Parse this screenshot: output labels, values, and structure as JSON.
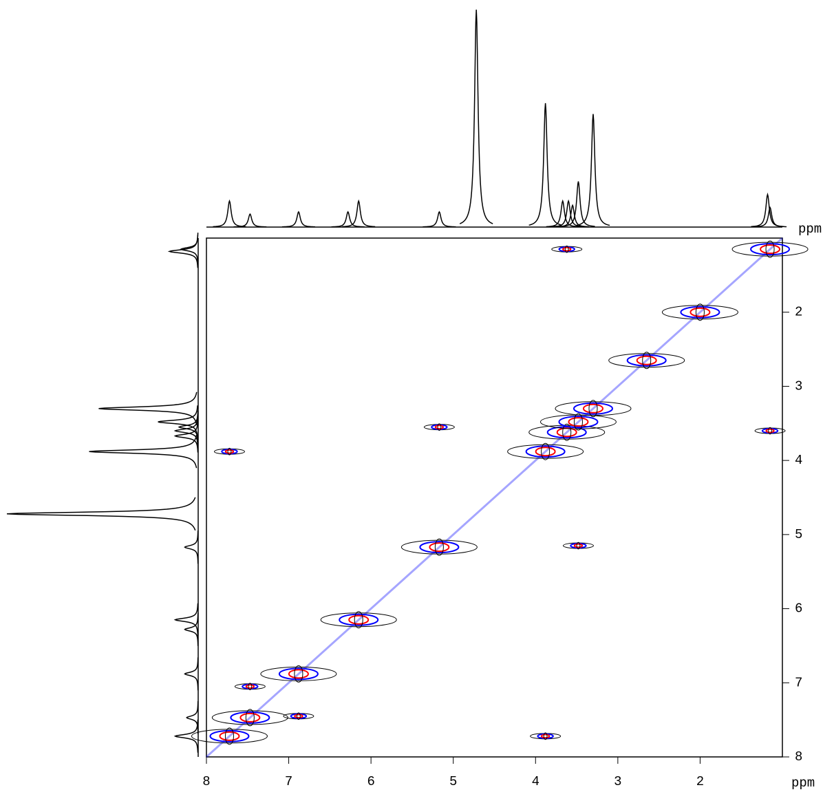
{
  "chart_data": {
    "type": "contour",
    "x_label": "ppm",
    "y_label": "ppm",
    "xlim": [
      8,
      1
    ],
    "ylim": [
      1,
      8
    ],
    "xticks": [
      8,
      7,
      6,
      5,
      4,
      3,
      2
    ],
    "yticks": [
      2,
      3,
      4,
      5,
      6,
      7,
      8
    ],
    "spectrum": {
      "x": [
        7.72,
        7.47,
        6.88,
        6.28,
        6.15,
        5.17,
        4.72,
        3.88,
        3.67,
        3.6,
        3.55,
        3.48,
        3.3,
        1.18,
        1.15
      ],
      "values": [
        12,
        6,
        7,
        7,
        12,
        7,
        100,
        57,
        12,
        12,
        10,
        21,
        52,
        15,
        9
      ]
    },
    "cross_peaks": {
      "x": [
        7.72,
        7.47,
        6.88,
        6.15,
        5.17,
        3.88,
        3.62,
        3.48,
        3.3,
        2.65,
        2.0,
        1.15,
        3.62,
        1.15,
        5.17,
        3.48,
        7.72,
        3.88,
        7.47,
        6.88
      ],
      "y": [
        7.72,
        7.47,
        6.88,
        6.15,
        5.17,
        3.88,
        3.62,
        3.48,
        3.3,
        2.65,
        2.0,
        1.15,
        1.15,
        3.6,
        3.55,
        5.15,
        3.88,
        7.72,
        7.05,
        7.45
      ]
    },
    "colors": [
      "#000000",
      "#0000ff",
      "#ff0000"
    ]
  }
}
